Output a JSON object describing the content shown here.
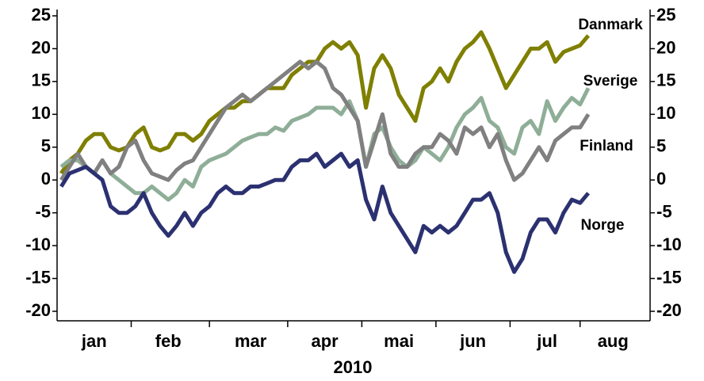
{
  "chart_data": {
    "type": "line",
    "x_label": "2010",
    "categories": [
      null,
      null,
      null,
      null,
      "jan",
      null,
      null,
      null,
      null,
      null,
      null,
      null,
      null,
      "feb",
      null,
      null,
      null,
      null,
      null,
      null,
      null,
      null,
      null,
      "mar",
      null,
      null,
      null,
      null,
      null,
      null,
      null,
      null,
      "apr",
      null,
      null,
      null,
      null,
      null,
      null,
      null,
      null,
      "mai",
      null,
      null,
      null,
      null,
      null,
      null,
      null,
      null,
      "jun",
      null,
      null,
      null,
      null,
      null,
      null,
      null,
      null,
      "jul",
      null,
      null,
      null,
      null,
      null,
      null,
      null,
      "aug",
      null,
      null,
      null,
      null
    ],
    "series": [
      {
        "name": "Danmark",
        "color": "#7f7f00",
        "values": [
          1,
          3,
          4,
          6,
          7,
          7,
          5,
          4.5,
          5,
          7,
          8,
          5,
          4.5,
          5,
          7,
          7,
          6,
          7,
          9,
          10,
          11,
          11,
          12,
          12,
          13,
          14,
          14,
          14,
          16,
          17,
          18,
          18,
          20,
          21,
          20,
          21,
          19,
          11,
          17,
          19,
          17,
          13,
          11,
          9,
          14,
          15,
          17,
          15,
          18,
          20,
          21,
          22.5,
          20,
          17,
          14,
          16,
          18,
          20,
          20,
          21,
          18,
          19.5,
          20,
          20.5,
          22,
          null,
          null,
          null,
          null,
          null,
          null,
          null
        ]
      },
      {
        "name": "Sverige",
        "color": "#8fae98",
        "values": [
          2,
          3,
          3,
          2,
          1,
          3,
          1,
          0,
          -1,
          -2,
          -2,
          -1,
          -2,
          -3,
          -2,
          0,
          -1,
          2,
          3,
          3.5,
          4,
          5,
          6,
          6.5,
          7,
          7,
          8,
          7.5,
          9,
          9.5,
          10,
          11,
          11,
          11,
          10,
          12,
          9,
          2,
          7,
          8,
          5,
          3,
          2,
          3,
          5,
          4,
          3,
          5,
          8,
          10,
          11,
          12.5,
          9,
          8,
          5,
          4,
          8,
          9,
          7,
          12,
          9,
          11,
          12.5,
          11.5,
          14,
          null,
          null,
          null,
          null,
          null,
          null,
          null
        ]
      },
      {
        "name": "Finland",
        "color": "#808080",
        "values": [
          0,
          2,
          4,
          2,
          1,
          3,
          1,
          2,
          5,
          6,
          3,
          1,
          0.5,
          0,
          1.5,
          2.5,
          3,
          5,
          7,
          9,
          11,
          12,
          13,
          12,
          13,
          14,
          15,
          16,
          17,
          18,
          17,
          18,
          17,
          14,
          13,
          11,
          9,
          2,
          6,
          10,
          4,
          2,
          2,
          4,
          5,
          5,
          7,
          6,
          4,
          8,
          7,
          8,
          5,
          7,
          3,
          0,
          1,
          3,
          5,
          3,
          6,
          7,
          8,
          8,
          10,
          null,
          null,
          null,
          null,
          null,
          null,
          null
        ]
      },
      {
        "name": "Norge",
        "color": "#2b3170",
        "values": [
          -1,
          1,
          1.5,
          2,
          1,
          0,
          -4,
          -5,
          -5,
          -4,
          -2,
          -5,
          -7,
          -8.5,
          -7,
          -5,
          -7,
          -5,
          -4,
          -2,
          -1,
          -2,
          -2,
          -1,
          -1,
          -0.5,
          0,
          0,
          2,
          3,
          3,
          4,
          2,
          3,
          4,
          2,
          3,
          -3,
          -6,
          -1,
          -5,
          -7,
          -9,
          -11,
          -7,
          -8,
          -7,
          -8,
          -7,
          -5,
          -3,
          -3,
          -2,
          -5,
          -11,
          -14,
          -12,
          -8,
          -6,
          -6,
          -8,
          -5,
          -3,
          -3.5,
          -2,
          null,
          null,
          null,
          null,
          null,
          null,
          null
        ]
      }
    ],
    "ylim": [
      -20,
      25
    ],
    "yticks": [
      -20,
      -15,
      -10,
      -5,
      0,
      5,
      10,
      15,
      20,
      25
    ],
    "y2lim": [
      -20,
      25
    ],
    "y2ticks": [
      -20,
      -15,
      -10,
      -5,
      0,
      5,
      10,
      15,
      20,
      25
    ],
    "grid": false
  }
}
